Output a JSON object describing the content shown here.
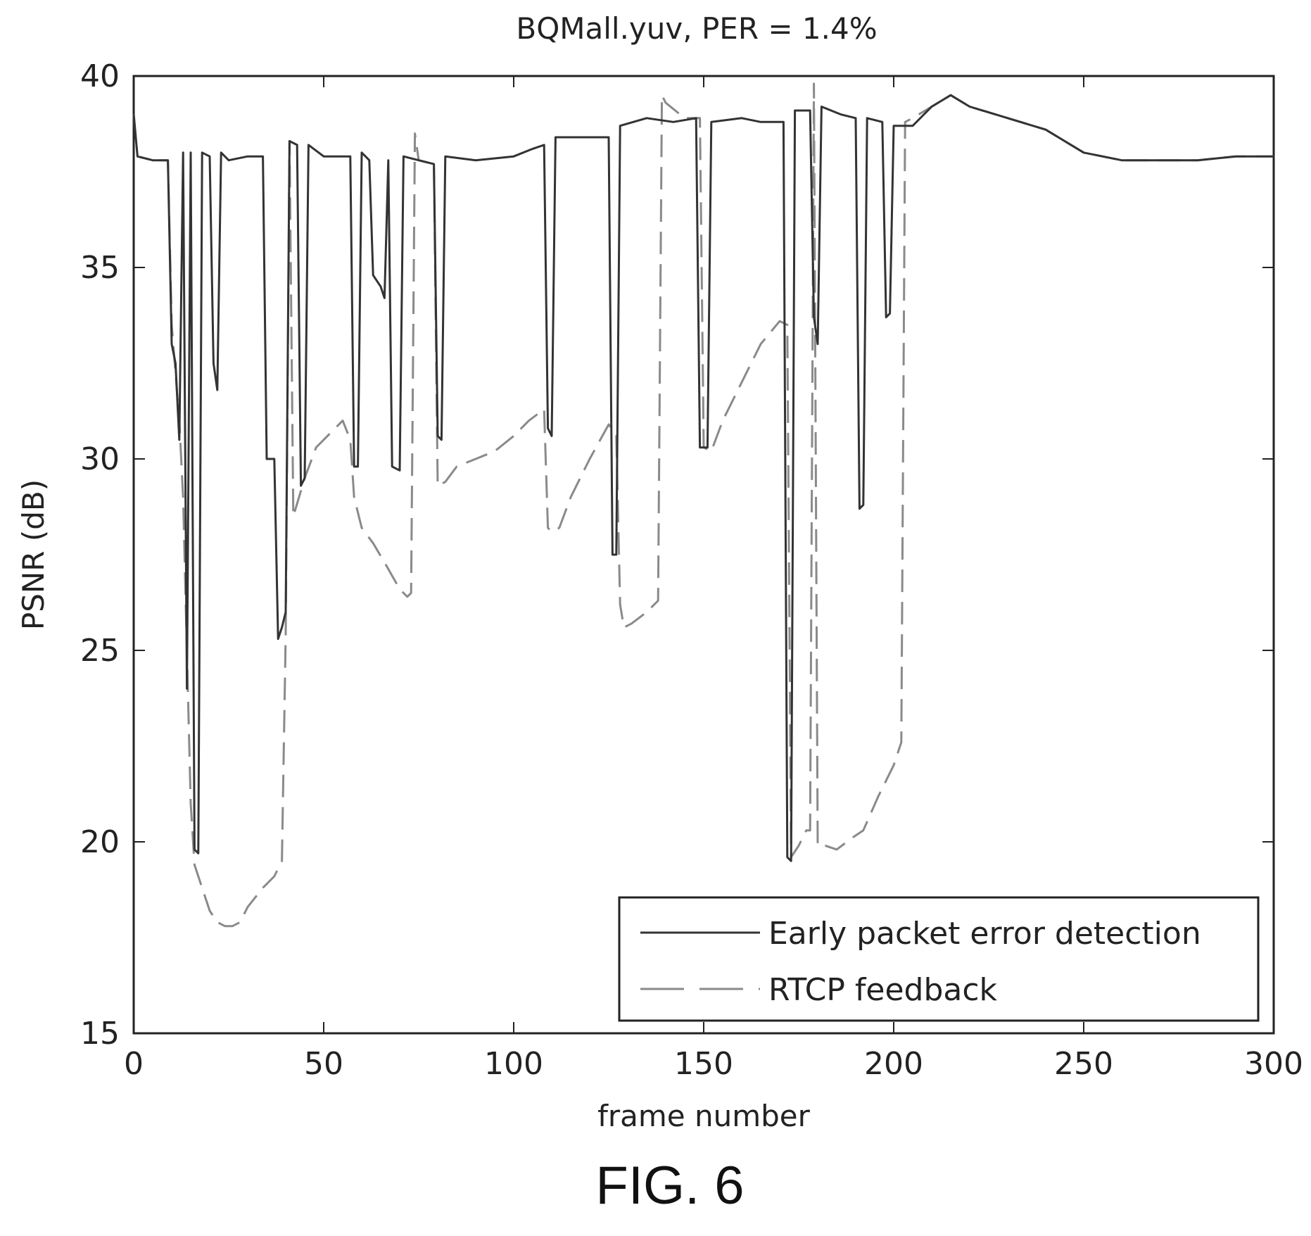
{
  "figure_label": "FIG. 6",
  "chart_data": {
    "type": "line",
    "title": "BQMall.yuv, PER = 1.4%",
    "xlabel": "frame number",
    "ylabel": "PSNR (dB)",
    "xlim": [
      0,
      300
    ],
    "ylim": [
      15,
      40
    ],
    "xticks": [
      0,
      50,
      100,
      150,
      200,
      250,
      300
    ],
    "yticks": [
      15,
      20,
      25,
      30,
      35,
      40
    ],
    "grid": false,
    "legend_position": "bottom-right",
    "colors": {
      "axis": "#222222",
      "early": "#333333",
      "rtcp": "#8a8a8a"
    },
    "series": [
      {
        "name": "Early packet error detection",
        "style": "solid",
        "points": [
          [
            0,
            39.0
          ],
          [
            1,
            37.9
          ],
          [
            5,
            37.8
          ],
          [
            9,
            37.8
          ],
          [
            10,
            33.0
          ],
          [
            11,
            32.5
          ],
          [
            12,
            30.5
          ],
          [
            13,
            38.0
          ],
          [
            14,
            24.0
          ],
          [
            15,
            38.0
          ],
          [
            16,
            19.8
          ],
          [
            17,
            19.7
          ],
          [
            18,
            38.0
          ],
          [
            20,
            37.9
          ],
          [
            21,
            32.5
          ],
          [
            22,
            31.8
          ],
          [
            23,
            38.0
          ],
          [
            25,
            37.8
          ],
          [
            30,
            37.9
          ],
          [
            34,
            37.9
          ],
          [
            35,
            30.0
          ],
          [
            37,
            30.0
          ],
          [
            38,
            25.3
          ],
          [
            39,
            25.6
          ],
          [
            40,
            26.0
          ],
          [
            41,
            38.3
          ],
          [
            43,
            38.2
          ],
          [
            44,
            29.3
          ],
          [
            45,
            29.5
          ],
          [
            46,
            38.2
          ],
          [
            50,
            37.9
          ],
          [
            57,
            37.9
          ],
          [
            58,
            29.8
          ],
          [
            59,
            29.8
          ],
          [
            60,
            38.0
          ],
          [
            62,
            37.8
          ],
          [
            63,
            34.8
          ],
          [
            65,
            34.5
          ],
          [
            66,
            34.2
          ],
          [
            67,
            37.8
          ],
          [
            68,
            29.8
          ],
          [
            70,
            29.7
          ],
          [
            71,
            37.9
          ],
          [
            75,
            37.8
          ],
          [
            79,
            37.7
          ],
          [
            80,
            30.6
          ],
          [
            81,
            30.5
          ],
          [
            82,
            37.9
          ],
          [
            90,
            37.8
          ],
          [
            100,
            37.9
          ],
          [
            105,
            38.1
          ],
          [
            108,
            38.2
          ],
          [
            109,
            30.8
          ],
          [
            110,
            30.6
          ],
          [
            111,
            38.4
          ],
          [
            120,
            38.4
          ],
          [
            125,
            38.4
          ],
          [
            126,
            27.5
          ],
          [
            127,
            27.5
          ],
          [
            128,
            38.7
          ],
          [
            135,
            38.9
          ],
          [
            142,
            38.8
          ],
          [
            148,
            38.9
          ],
          [
            149,
            30.3
          ],
          [
            151,
            30.3
          ],
          [
            152,
            38.8
          ],
          [
            160,
            38.9
          ],
          [
            165,
            38.8
          ],
          [
            171,
            38.8
          ],
          [
            172,
            19.6
          ],
          [
            173,
            19.5
          ],
          [
            174,
            39.1
          ],
          [
            178,
            39.1
          ],
          [
            179,
            33.7
          ],
          [
            180,
            33.0
          ],
          [
            181,
            39.2
          ],
          [
            186,
            39.0
          ],
          [
            190,
            38.9
          ],
          [
            191,
            28.7
          ],
          [
            192,
            28.8
          ],
          [
            193,
            38.9
          ],
          [
            197,
            38.8
          ],
          [
            198,
            33.7
          ],
          [
            199,
            33.8
          ],
          [
            200,
            38.7
          ],
          [
            205,
            38.7
          ],
          [
            210,
            39.2
          ],
          [
            215,
            39.5
          ],
          [
            220,
            39.2
          ],
          [
            230,
            38.9
          ],
          [
            240,
            38.6
          ],
          [
            250,
            38.0
          ],
          [
            260,
            37.8
          ],
          [
            270,
            37.8
          ],
          [
            280,
            37.8
          ],
          [
            290,
            37.9
          ],
          [
            300,
            37.9
          ]
        ]
      },
      {
        "name": "RTCP feedback",
        "style": "dashed",
        "points": [
          [
            0,
            39.0
          ],
          [
            1,
            37.9
          ],
          [
            5,
            37.8
          ],
          [
            9,
            37.8
          ],
          [
            10,
            33.5
          ],
          [
            12,
            31.0
          ],
          [
            13,
            29.0
          ],
          [
            15,
            21.0
          ],
          [
            16,
            19.4
          ],
          [
            18,
            18.8
          ],
          [
            20,
            18.2
          ],
          [
            22,
            17.9
          ],
          [
            24,
            17.8
          ],
          [
            26,
            17.8
          ],
          [
            28,
            17.9
          ],
          [
            30,
            18.3
          ],
          [
            34,
            18.8
          ],
          [
            37,
            19.1
          ],
          [
            39,
            19.5
          ],
          [
            40,
            25.4
          ],
          [
            41,
            38.3
          ],
          [
            42,
            28.5
          ],
          [
            45,
            29.5
          ],
          [
            48,
            30.3
          ],
          [
            52,
            30.7
          ],
          [
            55,
            31.0
          ],
          [
            57,
            30.5
          ],
          [
            58,
            29.0
          ],
          [
            60,
            28.2
          ],
          [
            63,
            27.8
          ],
          [
            66,
            27.3
          ],
          [
            70,
            26.6
          ],
          [
            72,
            26.4
          ],
          [
            73,
            26.5
          ],
          [
            74,
            38.5
          ],
          [
            75,
            37.8
          ],
          [
            79,
            37.7
          ],
          [
            80,
            29.3
          ],
          [
            82,
            29.4
          ],
          [
            85,
            29.8
          ],
          [
            90,
            30.0
          ],
          [
            95,
            30.2
          ],
          [
            100,
            30.6
          ],
          [
            104,
            31.0
          ],
          [
            108,
            31.3
          ],
          [
            109,
            28.2
          ],
          [
            110,
            28.1
          ],
          [
            112,
            28.2
          ],
          [
            115,
            29.0
          ],
          [
            120,
            30.0
          ],
          [
            125,
            30.9
          ],
          [
            127,
            30.6
          ],
          [
            128,
            26.2
          ],
          [
            129,
            25.6
          ],
          [
            131,
            25.7
          ],
          [
            135,
            26.0
          ],
          [
            138,
            26.3
          ],
          [
            139,
            39.5
          ],
          [
            140,
            39.3
          ],
          [
            145,
            38.9
          ],
          [
            149,
            38.9
          ],
          [
            150,
            30.3
          ],
          [
            152,
            30.2
          ],
          [
            155,
            31.0
          ],
          [
            160,
            32.0
          ],
          [
            165,
            33.0
          ],
          [
            170,
            33.6
          ],
          [
            172,
            33.5
          ],
          [
            173,
            19.6
          ],
          [
            175,
            19.9
          ],
          [
            177,
            20.3
          ],
          [
            178,
            20.3
          ],
          [
            179,
            39.8
          ],
          [
            180,
            19.9
          ],
          [
            182,
            19.9
          ],
          [
            185,
            19.8
          ],
          [
            189,
            20.1
          ],
          [
            192,
            20.3
          ],
          [
            196,
            21.2
          ],
          [
            200,
            22.0
          ],
          [
            202,
            22.6
          ],
          [
            203,
            38.8
          ],
          [
            205,
            38.9
          ],
          [
            210,
            39.2
          ],
          [
            215,
            39.5
          ],
          [
            220,
            39.2
          ],
          [
            230,
            38.9
          ],
          [
            240,
            38.6
          ],
          [
            250,
            38.0
          ],
          [
            260,
            37.8
          ],
          [
            270,
            37.8
          ],
          [
            280,
            37.8
          ],
          [
            290,
            37.9
          ],
          [
            300,
            37.9
          ]
        ]
      }
    ]
  }
}
